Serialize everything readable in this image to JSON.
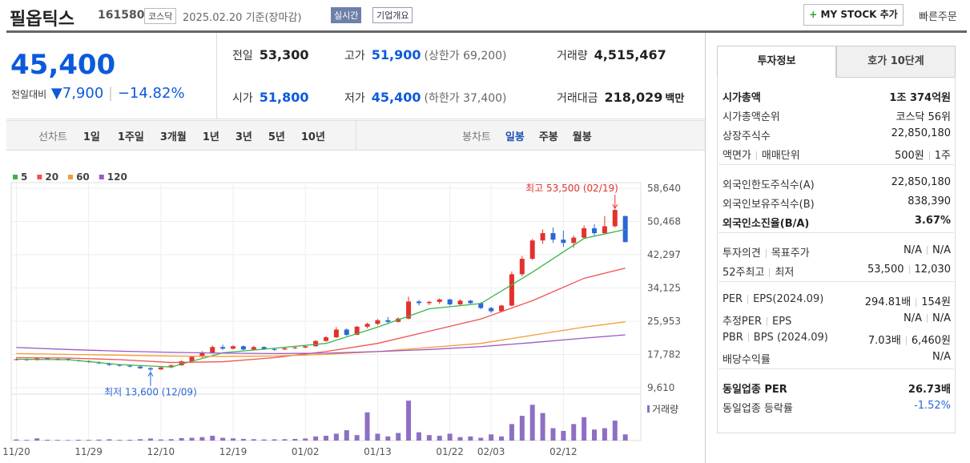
{
  "header": {
    "title": "필옵틱스",
    "code": "161580",
    "market": "코스닥",
    "date": "2025.02.20 기준(장마감)",
    "realtime": "실시간",
    "company": "기업개요",
    "mystock": "MY STOCK 추가",
    "quick_order": "빠른주문"
  },
  "quote": {
    "price": "45,400",
    "change_label": "전일대비",
    "change": "7,900",
    "change_rate": "−14.82%",
    "items": [
      {
        "label": "전일",
        "value": "53,300",
        "color": "#222222"
      },
      {
        "label": "고가",
        "value": "51,900",
        "note": "(상한가 69,200)",
        "color": "#0c5adb"
      },
      {
        "label": "거래량",
        "value": "4,515,467",
        "color": "#222222"
      },
      {
        "label": "시가",
        "value": "51,800",
        "color": "#0c5adb"
      },
      {
        "label": "저가",
        "value": "45,400",
        "note": "(하한가 37,400)",
        "color": "#0c5adb"
      },
      {
        "label": "거래대금",
        "value": "218,029",
        "unit": "백만",
        "color": "#222222"
      }
    ]
  },
  "toolbar": {
    "line_chart": "선차트",
    "line_periods": [
      "1일",
      "1주일",
      "3개월",
      "1년",
      "3년",
      "5년",
      "10년"
    ],
    "candle_chart": "봉차트",
    "candle_periods": [
      "일봉",
      "주봉",
      "월봉"
    ]
  },
  "chart_data": {
    "type": "candlestick",
    "up_color": "#e4312c",
    "down_color": "#2a67d8",
    "xlim": [
      -0.5,
      60.5
    ],
    "ylim": [
      9610,
      58640
    ],
    "yticks": [
      {
        "value": 58640,
        "label": "58,640"
      },
      {
        "value": 50468,
        "label": "50,468"
      },
      {
        "value": 42297,
        "label": "42,297"
      },
      {
        "value": 34125,
        "label": "34,125"
      },
      {
        "value": 25953,
        "label": "25,953"
      },
      {
        "value": 17782,
        "label": "17,782"
      },
      {
        "value": 9610,
        "label": "9,610"
      }
    ],
    "xticks": [
      {
        "value": 0,
        "label": "11/20"
      },
      {
        "value": 7,
        "label": "11/29"
      },
      {
        "value": 14,
        "label": "12/10"
      },
      {
        "value": 21,
        "label": "12/19"
      },
      {
        "value": 28,
        "label": "01/02"
      },
      {
        "value": 35,
        "label": "01/13"
      },
      {
        "value": 42,
        "label": "01/22"
      },
      {
        "value": 46,
        "label": "02/03"
      },
      {
        "value": 53,
        "label": "02/12"
      }
    ],
    "grid": true,
    "candles": {
      "open": [
        16500,
        16600,
        16400,
        16800,
        16500,
        16700,
        16400,
        16200,
        15900,
        15600,
        15200,
        15000,
        14800,
        14400,
        14100,
        14600,
        15100,
        16100,
        17200,
        18200,
        19600,
        19200,
        19800,
        19000,
        19600,
        19100,
        19000,
        19300,
        19500,
        19800,
        21100,
        22000,
        23900,
        22600,
        24600,
        25300,
        26200,
        25800,
        26600,
        30800,
        30400,
        30700,
        31300,
        30100,
        31000,
        30400,
        29200,
        28400,
        29800,
        37500,
        41300,
        45800,
        47600,
        46000,
        45200,
        46500,
        48800,
        47600,
        49300,
        51800
      ],
      "high": [
        16900,
        16800,
        17000,
        17000,
        16900,
        16800,
        16500,
        16300,
        16100,
        15800,
        15400,
        15300,
        15000,
        14700,
        14800,
        15300,
        16300,
        17300,
        18600,
        20000,
        20200,
        20100,
        20000,
        19900,
        19800,
        19400,
        19600,
        19800,
        20000,
        21300,
        22300,
        24500,
        24200,
        24800,
        25600,
        26500,
        27000,
        26900,
        32000,
        31200,
        31000,
        31600,
        31500,
        31300,
        31200,
        30600,
        29500,
        30000,
        38200,
        42000,
        46200,
        48500,
        49000,
        48200,
        47000,
        49500,
        49800,
        51800,
        53500,
        51900
      ],
      "low": [
        16300,
        16200,
        16300,
        16400,
        16300,
        16200,
        16000,
        15700,
        15400,
        15000,
        14800,
        14600,
        14200,
        13600,
        14000,
        14400,
        15000,
        16000,
        17000,
        18000,
        18900,
        19000,
        18800,
        18800,
        18900,
        18700,
        18900,
        19100,
        19300,
        19700,
        20900,
        21800,
        22300,
        22500,
        24200,
        25000,
        25400,
        25600,
        26400,
        29800,
        29900,
        30200,
        29800,
        29900,
        30200,
        28900,
        28000,
        28200,
        29600,
        37000,
        41000,
        45000,
        45200,
        44200,
        44000,
        46200,
        47000,
        47400,
        49000,
        45400
      ],
      "close": [
        16600,
        16400,
        16800,
        16500,
        16700,
        16400,
        16200,
        15900,
        15600,
        15200,
        15000,
        14800,
        14400,
        14100,
        14600,
        15100,
        16100,
        17200,
        18200,
        19600,
        19200,
        19800,
        19000,
        19600,
        19100,
        19000,
        19300,
        19500,
        19800,
        21100,
        22000,
        23900,
        22600,
        24600,
        25300,
        26200,
        25800,
        26600,
        30800,
        30400,
        30700,
        31300,
        30100,
        31000,
        30400,
        29200,
        28400,
        29800,
        37500,
        41300,
        45800,
        47600,
        46000,
        45200,
        46500,
        48800,
        47600,
        49300,
        53300,
        45400
      ]
    },
    "volume": {
      "name": "거래량",
      "color": "#8e6fc4",
      "values": [
        800000,
        500000,
        1600000,
        600000,
        500000,
        400000,
        600000,
        500000,
        700000,
        900000,
        500000,
        600000,
        1000000,
        1500000,
        800000,
        1000000,
        1800000,
        2000000,
        2500000,
        3500000,
        2000000,
        1600000,
        1200000,
        1000000,
        800000,
        900000,
        1000000,
        1200000,
        1500000,
        3000000,
        3500000,
        5000000,
        7500000,
        4000000,
        20500000,
        5000000,
        3000000,
        5500000,
        29000000,
        6000000,
        4000000,
        3500000,
        5000000,
        2500000,
        3000000,
        2000000,
        4500000,
        3000000,
        12000000,
        18000000,
        26000000,
        20000000,
        9000000,
        7000000,
        12000000,
        17000000,
        8000000,
        9000000,
        14500000,
        4515467
      ]
    },
    "vlim": [
      0,
      32000000
    ],
    "series": [
      {
        "name": "5",
        "color": "#3cb44b",
        "x": [
          0,
          5,
          10,
          15,
          20,
          25,
          30,
          35,
          40,
          45,
          50,
          55,
          59
        ],
        "values": [
          16600,
          16500,
          15300,
          14700,
          18200,
          19300,
          20500,
          24500,
          29000,
          30300,
          38000,
          46300,
          48500
        ]
      },
      {
        "name": "20",
        "color": "#ef5350",
        "x": [
          0,
          5,
          10,
          15,
          20,
          25,
          30,
          35,
          40,
          45,
          50,
          55,
          59
        ],
        "values": [
          17000,
          16900,
          16500,
          15800,
          16000,
          17000,
          18500,
          20500,
          23500,
          26500,
          31000,
          36500,
          39000
        ]
      },
      {
        "name": "60",
        "color": "#f39c34",
        "x": [
          0,
          5,
          10,
          15,
          20,
          25,
          30,
          35,
          40,
          45,
          50,
          55,
          59
        ],
        "values": [
          18000,
          17800,
          17600,
          17400,
          17300,
          17400,
          17800,
          18500,
          19500,
          20500,
          22500,
          24500,
          25800
        ]
      },
      {
        "name": "120",
        "color": "#9b59c6",
        "x": [
          0,
          5,
          10,
          15,
          20,
          25,
          30,
          35,
          40,
          45,
          50,
          55,
          59
        ],
        "values": [
          19500,
          19000,
          18600,
          18300,
          18100,
          18000,
          18100,
          18500,
          19000,
          19700,
          20700,
          21800,
          22600
        ]
      }
    ],
    "annotations": [
      {
        "text": "최고 53,500 (02/19)",
        "x": 58,
        "y": 53500,
        "color": "#e4312c",
        "side": "top"
      },
      {
        "text": "최저 13,600 (12/09)",
        "x": 13,
        "y": 13600,
        "color": "#2a67d8",
        "side": "bottom"
      }
    ]
  },
  "info": {
    "tabs": [
      "투자정보",
      "호가 10단계"
    ],
    "groups": [
      [
        {
          "label": [
            "시가총액"
          ],
          "value": [
            "1조 374억원"
          ],
          "bold": true
        },
        {
          "label": [
            "시가총액순위"
          ],
          "value": [
            "코스닥 56위"
          ]
        },
        {
          "label": [
            "상장주식수"
          ],
          "value": [
            "22,850,180"
          ]
        },
        {
          "label": [
            "액면가",
            "매매단위"
          ],
          "value": [
            "500원",
            "1주"
          ]
        }
      ],
      [
        {
          "label": [
            "외국인한도주식수(A)"
          ],
          "value": [
            "22,850,180"
          ]
        },
        {
          "label": [
            "외국인보유주식수(B)"
          ],
          "value": [
            "838,390"
          ]
        },
        {
          "label": [
            "외국인소진율(B/A)"
          ],
          "value": [
            "3.67%"
          ],
          "bold": true
        }
      ],
      [
        {
          "label": [
            "투자의견",
            "목표주가"
          ],
          "value": [
            "N/A",
            "N/A"
          ]
        },
        {
          "label": [
            "52주최고",
            "최저"
          ],
          "value": [
            "53,500",
            "12,030"
          ]
        }
      ],
      [
        {
          "label": [
            "PER",
            "EPS(2024.09)"
          ],
          "value": [
            "294.81배",
            "154원"
          ]
        },
        {
          "label": [
            "추정PER",
            "EPS"
          ],
          "value": [
            "N/A",
            "N/A"
          ]
        },
        {
          "label": [
            "PBR",
            "BPS (2024.09)"
          ],
          "value": [
            "7.03배",
            "6,460원"
          ]
        },
        {
          "label": [
            "배당수익률"
          ],
          "value": [
            "N/A"
          ]
        }
      ],
      [
        {
          "label": [
            "동일업종 PER"
          ],
          "value": [
            "26.73배"
          ],
          "bold": true
        },
        {
          "label": [
            "동일업종 등락률"
          ],
          "value": [
            "-1.52%"
          ],
          "color": "#2a67d8"
        }
      ]
    ]
  }
}
